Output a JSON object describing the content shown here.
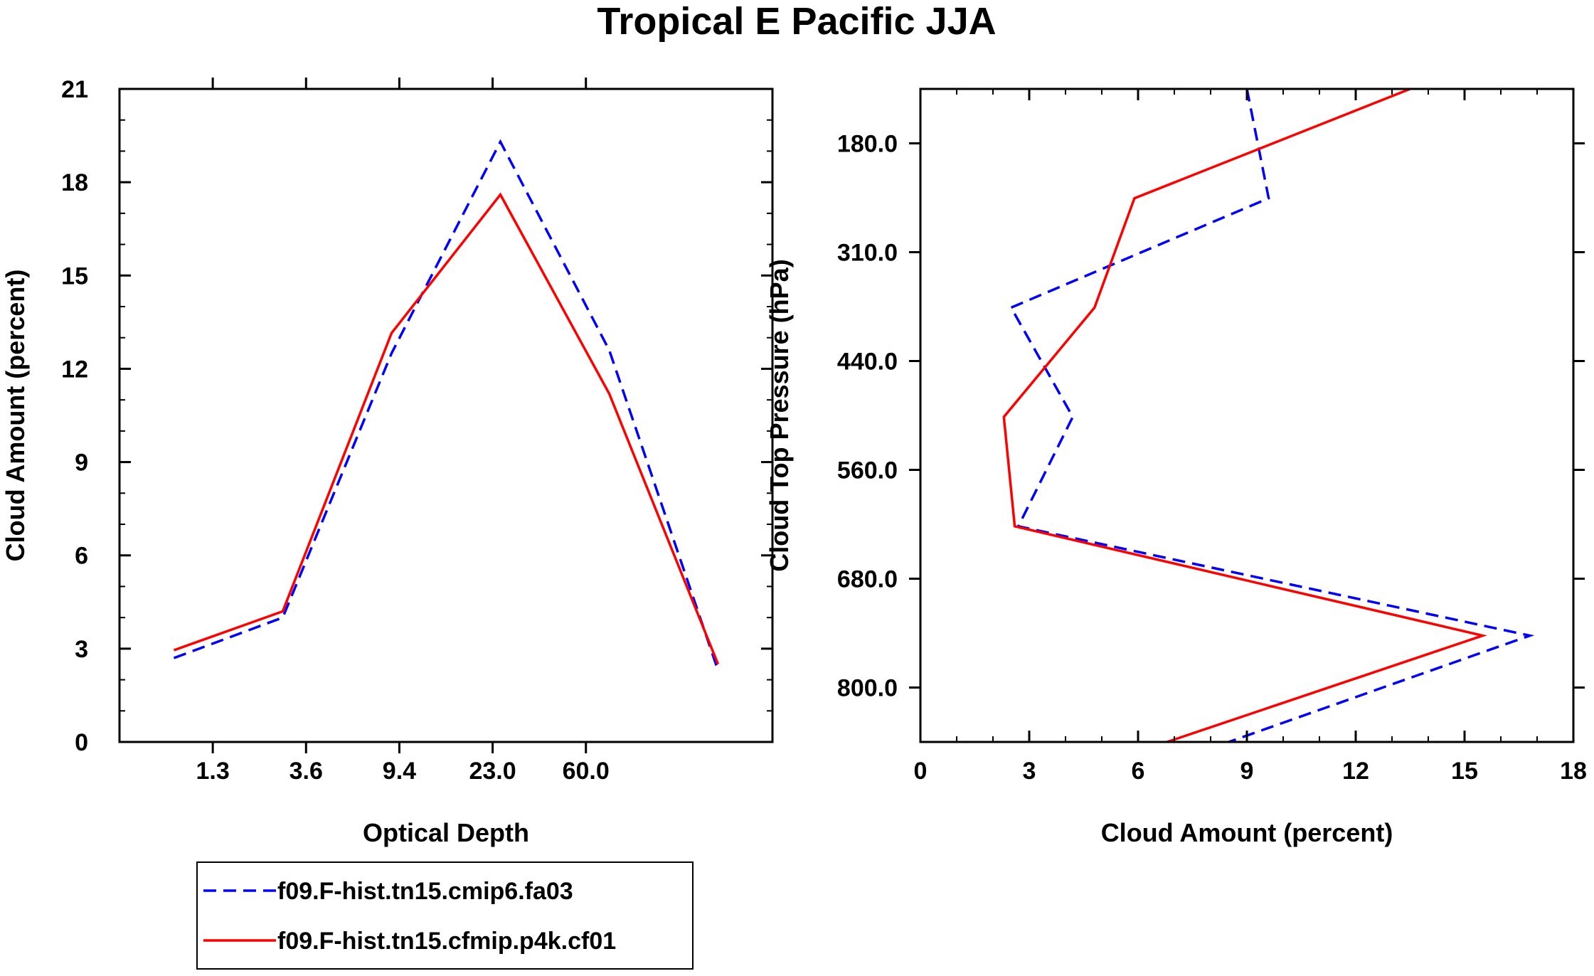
{
  "title": "Tropical E Pacific JJA",
  "legend": [
    {
      "label": "f09.F-hist.tn15.cmip6.fa03",
      "color": "#0000ff",
      "dash": true
    },
    {
      "label": "f09.F-hist.tn15.cfmip.p4k.cf01",
      "color": "#ff0000",
      "dash": false
    }
  ],
  "chart_data": [
    {
      "type": "line",
      "xlabel": "Optical Depth",
      "ylabel": "Cloud Amount (percent)",
      "x_tick_labels": [
        "1.3",
        "3.6",
        "9.4",
        "23.0",
        "60.0"
      ],
      "y_ticks": [
        0,
        3,
        6,
        9,
        12,
        15,
        18,
        21
      ],
      "ylim": [
        0,
        21
      ],
      "grid": false,
      "series": [
        {
          "color": "#0000ff",
          "dash": true,
          "values": [
            2.7,
            4.0,
            12.5,
            19.3,
            12.6,
            2.3
          ]
        },
        {
          "color": "#ff0000",
          "dash": false,
          "values": [
            2.95,
            4.2,
            13.15,
            17.6,
            11.2,
            2.5
          ]
        }
      ]
    },
    {
      "type": "line",
      "xlabel": "Cloud Amount (percent)",
      "ylabel": "Cloud Top Pressure (hPa)",
      "x_ticks": [
        0,
        3,
        6,
        9,
        12,
        15,
        18
      ],
      "xlim": [
        0,
        18
      ],
      "y_tick_labels": [
        "180.0",
        "310.0",
        "440.0",
        "560.0",
        "680.0",
        "800.0"
      ],
      "grid": false,
      "series": [
        {
          "color": "#0000ff",
          "dash": true,
          "values": [
            9.0,
            9.6,
            2.5,
            4.2,
            2.7,
            16.8,
            8.5
          ]
        },
        {
          "color": "#ff0000",
          "dash": false,
          "values": [
            13.5,
            5.9,
            4.8,
            2.3,
            2.6,
            15.5,
            6.8
          ]
        }
      ]
    }
  ]
}
